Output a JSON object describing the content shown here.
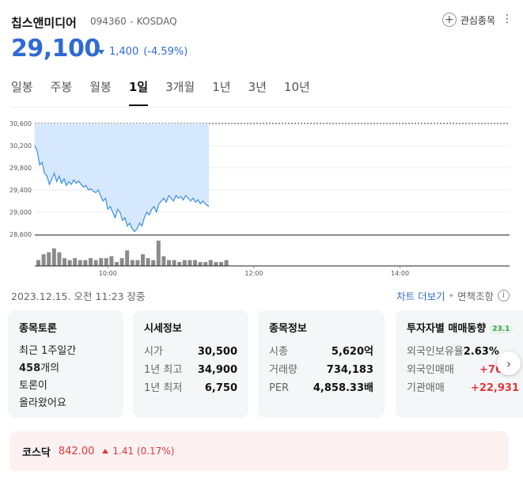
{
  "stock": {
    "name": "칩스앤미디어",
    "code": "094360",
    "dot": "•",
    "market": "KOSDAQ",
    "price": "29,100",
    "change_amount": "1,400",
    "change_percent": "(-4.59%)"
  },
  "watch_label": "관심종목",
  "tabs": [
    {
      "label": "일봉",
      "active": false
    },
    {
      "label": "주봉",
      "active": false
    },
    {
      "label": "월봉",
      "active": false
    },
    {
      "label": "1일",
      "active": true
    },
    {
      "label": "3개월",
      "active": false
    },
    {
      "label": "1년",
      "active": false
    },
    {
      "label": "3년",
      "active": false
    },
    {
      "label": "10년",
      "active": false
    }
  ],
  "chart_data": {
    "type": "area",
    "y_ticks": [
      "30,600",
      "30,200",
      "29,800",
      "29,400",
      "29,000",
      "28,600"
    ],
    "ylim": [
      28600,
      30600
    ],
    "x_ticks": [
      "10:00",
      "12:00",
      "14:00"
    ],
    "session": [
      "09:00",
      "15:30"
    ],
    "series": [
      {
        "x": [
          "09:00",
          "09:02",
          "09:04",
          "09:06",
          "09:08",
          "09:10",
          "09:12",
          "09:14",
          "09:16",
          "09:18",
          "09:20",
          "09:22",
          "09:24",
          "09:26",
          "09:28",
          "09:30",
          "09:32",
          "09:34",
          "09:36",
          "09:38",
          "09:40",
          "09:42",
          "09:44",
          "09:46",
          "09:48",
          "09:50",
          "09:52",
          "09:54",
          "09:56",
          "09:58",
          "10:00",
          "10:02",
          "10:04",
          "10:06",
          "10:08",
          "10:10",
          "10:12",
          "10:14",
          "10:16",
          "10:18",
          "10:20",
          "10:22",
          "10:24",
          "10:26",
          "10:28",
          "10:30",
          "10:32",
          "10:34",
          "10:36",
          "10:38",
          "10:40",
          "10:42",
          "10:44",
          "10:46",
          "10:48",
          "10:50",
          "10:52",
          "10:54",
          "10:56",
          "10:58",
          "11:00",
          "11:02",
          "11:04",
          "11:06",
          "11:08",
          "11:10",
          "11:12",
          "11:14",
          "11:16",
          "11:18",
          "11:20",
          "11:22",
          "11:23"
        ],
        "values": [
          30200,
          30100,
          29850,
          29900,
          29700,
          29650,
          29500,
          29600,
          29700,
          29550,
          29650,
          29520,
          29600,
          29480,
          29550,
          29500,
          29580,
          29520,
          29560,
          29500,
          29450,
          29480,
          29400,
          29420,
          29380,
          29350,
          29400,
          29300,
          29200,
          29250,
          29050,
          29100,
          29000,
          28900,
          29050,
          29000,
          28850,
          28900,
          28750,
          28800,
          28700,
          28650,
          28700,
          28800,
          28750,
          28900,
          29000,
          28950,
          29050,
          29100,
          29000,
          29150,
          29200,
          29250,
          29180,
          29300,
          29250,
          29200,
          29300,
          29250,
          29280,
          29220,
          29300,
          29250,
          29200,
          29250,
          29180,
          29220,
          29150,
          29200,
          29150,
          29120,
          29100
        ]
      }
    ],
    "volume": [
      3,
      6,
      7,
      9,
      7,
      4,
      3,
      4,
      3,
      3,
      4,
      3,
      4,
      4,
      5,
      2,
      4,
      8,
      3,
      3,
      6,
      4,
      3,
      13,
      5,
      3,
      3,
      2,
      3,
      3,
      3,
      2,
      2,
      3,
      2,
      2,
      3
    ]
  },
  "meta": {
    "datetime": "2023.12.15. 오전 11:23 장중",
    "chart_more": "차트 더보기",
    "dot": "•",
    "disclaimer": "면책조항",
    "info_icon_glyph": "i"
  },
  "cards": {
    "forum": {
      "title": "종목토론",
      "line1": "최근 1주일간",
      "count": "458",
      "count_suffix": "개의",
      "line3": "토론이",
      "line4": "올라왔어요"
    },
    "quote": {
      "title": "시세정보",
      "rows": [
        {
          "label": "시가",
          "value": "30,500"
        },
        {
          "label": "1년 최고",
          "value": "34,900"
        },
        {
          "label": "1년 최저",
          "value": "6,750"
        }
      ]
    },
    "info": {
      "title": "종목정보",
      "rows": [
        {
          "label": "시총",
          "value": "5,620억"
        },
        {
          "label": "거래량",
          "value": "734,183"
        },
        {
          "label": "PER",
          "value": "4,858.33배"
        }
      ]
    },
    "investor": {
      "title": "투자자별 매매동향",
      "badge": "23.1",
      "rows": [
        {
          "label": "외국인보유율",
          "value": "2.63%"
        },
        {
          "label": "외국인매매",
          "value": "+76"
        },
        {
          "label": "기관매매",
          "value": "+22,931"
        }
      ]
    }
  },
  "index_bar": {
    "name": "코스닥",
    "value": "842.00",
    "change": "1.41 (0.17%)"
  },
  "colors": {
    "accent_blue": "#2f6bd4",
    "down_blue": "#2f6bd4",
    "up_red": "#e0373c",
    "area_fill": "#d6e8fd",
    "line": "#3a8ee6"
  }
}
